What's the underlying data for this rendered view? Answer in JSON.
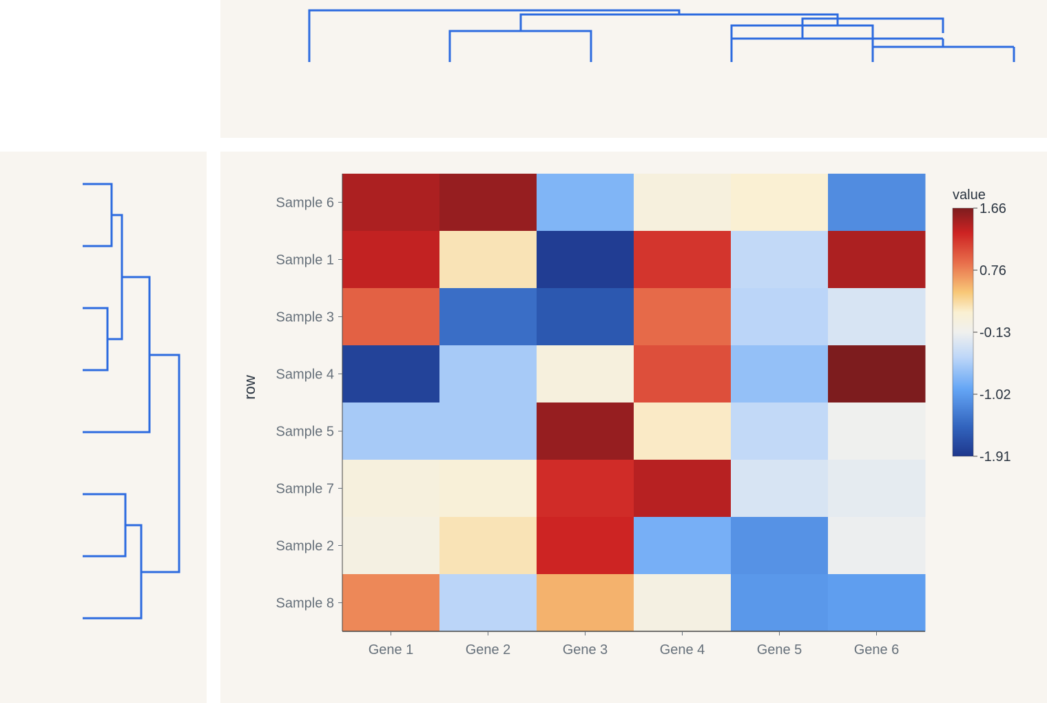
{
  "chart_data": {
    "type": "heatmap",
    "title": "",
    "xlabel": "",
    "ylabel": "row",
    "columns": [
      "Gene 1",
      "Gene 2",
      "Gene 3",
      "Gene 4",
      "Gene 5",
      "Gene 6"
    ],
    "rows": [
      "Sample 6",
      "Sample 1",
      "Sample 3",
      "Sample 4",
      "Sample 5",
      "Sample 7",
      "Sample 2",
      "Sample 8"
    ],
    "values": [
      [
        1.45,
        1.55,
        -0.8,
        0.05,
        0.15,
        -1.15
      ],
      [
        1.35,
        0.25,
        -1.85,
        1.2,
        -0.45,
        1.45
      ],
      [
        0.95,
        -1.4,
        -1.6,
        0.9,
        -0.5,
        -0.3
      ],
      [
        -1.8,
        -0.6,
        0.05,
        1.05,
        -0.7,
        1.66
      ],
      [
        -0.6,
        -0.6,
        1.55,
        0.2,
        -0.45,
        -0.13
      ],
      [
        0.05,
        0.1,
        1.25,
        1.4,
        -0.3,
        -0.2
      ],
      [
        0.0,
        0.25,
        1.3,
        -0.85,
        -1.1,
        -0.15
      ],
      [
        0.75,
        -0.5,
        0.55,
        0.0,
        -1.05,
        -1.0
      ]
    ],
    "colorbar": {
      "title": "value",
      "min": -1.91,
      "max": 1.66,
      "ticks": [
        "1.66",
        "0.76",
        "-0.13",
        "-1.02",
        "-1.91"
      ]
    },
    "row_dendrogram": "left",
    "column_dendrogram": "top",
    "dendrogram_color": "#2d6bdf"
  }
}
